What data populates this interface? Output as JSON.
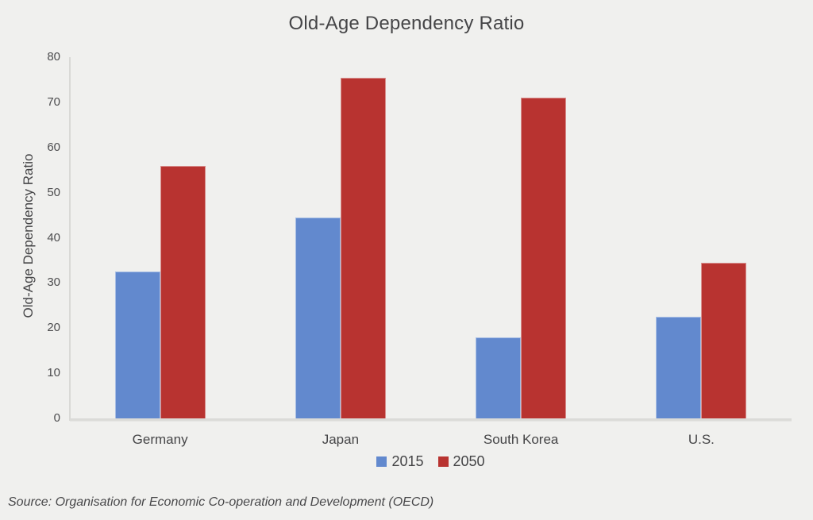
{
  "page": {
    "background": "#F0F0EE",
    "text_color": "#454547"
  },
  "source_note": "Source: Organisation for Economic Co-operation and Development (OECD)",
  "chart_data": {
    "type": "bar",
    "title": "Old-Age Dependency Ratio",
    "categories": [
      "Germany",
      "Japan",
      "South Korea",
      "U.S."
    ],
    "series": [
      {
        "name": "2015",
        "color": "#6289CE",
        "values": [
          32.5,
          44.5,
          18,
          22.5
        ]
      },
      {
        "name": "2050",
        "color": "#B83330",
        "values": [
          56,
          75.5,
          71,
          34.5
        ]
      }
    ],
    "xlabel": "",
    "ylabel": "Old-Age Dependency Ratio",
    "ylim": [
      0,
      80
    ],
    "yticks": [
      0,
      10,
      20,
      30,
      40,
      50,
      60,
      70,
      80
    ],
    "grid": false,
    "legend_position": "bottom-center",
    "axis_color": "#D9D9D6",
    "plot_background": "#F0F0EE"
  }
}
